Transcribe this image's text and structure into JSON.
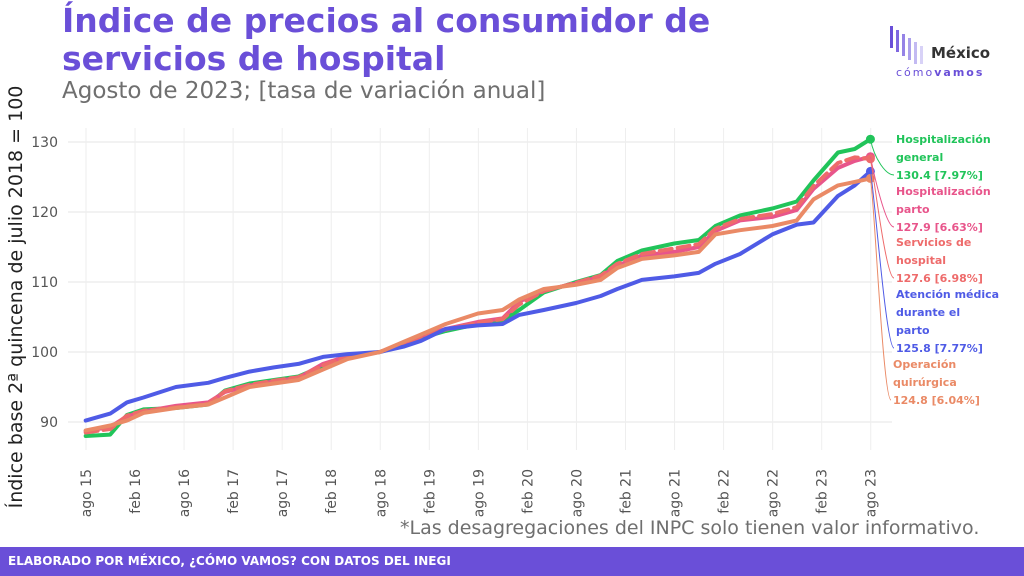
{
  "header": {
    "title": "Índice de precios al consumidor de servicios de hospital",
    "subtitle": "Agosto de 2023; [tasa de variación anual]"
  },
  "logo": {
    "name": "México",
    "sub_a": "cómo",
    "sub_b": "vamos"
  },
  "note": "*Las desagregaciones del INPC solo tienen valor informativo.",
  "footer": "ELABORADO POR MÉXICO, ¿CÓMO VAMOS? CON DATOS DEL INEGI",
  "chart_data": {
    "type": "line",
    "ylabel": "Índice base 2ª quincena de julio 2018 = 100",
    "ylim": [
      86,
      132
    ],
    "yticks": [
      90,
      100,
      110,
      120,
      130
    ],
    "xticks": [
      "ago 15",
      "feb 16",
      "ago 16",
      "feb 17",
      "ago 17",
      "feb 18",
      "ago 18",
      "feb 19",
      "ago 19",
      "feb 20",
      "ago 20",
      "feb 21",
      "ago 21",
      "feb 22",
      "ago 22",
      "feb 23",
      "ago 23"
    ],
    "grid": true,
    "series": [
      {
        "name": "Hospitalización general",
        "value_label": "130.4 [7.97%]",
        "color": "#21c45a",
        "dashed": false,
        "x": [
          2015.58,
          2015.83,
          2016.0,
          2016.17,
          2016.5,
          2016.83,
          2017.0,
          2017.25,
          2017.5,
          2017.75,
          2018.0,
          2018.25,
          2018.58,
          2018.83,
          2019.0,
          2019.25,
          2019.58,
          2019.83,
          2020.0,
          2020.25,
          2020.58,
          2020.83,
          2021.0,
          2021.25,
          2021.58,
          2021.83,
          2022.0,
          2022.25,
          2022.58,
          2022.83,
          2023.0,
          2023.25,
          2023.42,
          2023.58
        ],
        "values": [
          88.0,
          88.2,
          91.0,
          91.8,
          92.0,
          92.5,
          94.5,
          95.5,
          96.0,
          96.5,
          98.0,
          99.3,
          100.0,
          101.0,
          102.0,
          103.0,
          104.0,
          104.5,
          106.0,
          108.5,
          110.0,
          111.0,
          113.0,
          114.5,
          115.5,
          116.0,
          118.0,
          119.5,
          120.5,
          121.5,
          124.5,
          128.5,
          129.0,
          130.4
        ]
      },
      {
        "name": "Hospitalización parto",
        "value_label": "127.9 [6.63%]",
        "color": "#e8558b",
        "dashed": false,
        "x": [
          2015.58,
          2015.83,
          2016.0,
          2016.17,
          2016.5,
          2016.83,
          2017.0,
          2017.25,
          2017.5,
          2017.75,
          2018.0,
          2018.25,
          2018.58,
          2018.83,
          2019.0,
          2019.25,
          2019.58,
          2019.83,
          2020.0,
          2020.25,
          2020.58,
          2020.83,
          2021.0,
          2021.25,
          2021.58,
          2021.83,
          2022.0,
          2022.25,
          2022.58,
          2022.83,
          2023.0,
          2023.25,
          2023.42,
          2023.58
        ],
        "values": [
          88.7,
          89.3,
          90.8,
          91.5,
          92.3,
          92.8,
          94.3,
          95.2,
          95.8,
          96.3,
          98.3,
          99.4,
          100.0,
          101.3,
          102.3,
          103.3,
          104.3,
          104.8,
          107.2,
          108.8,
          109.8,
          110.8,
          112.3,
          113.8,
          114.3,
          115.0,
          117.3,
          118.8,
          119.3,
          120.3,
          123.3,
          126.3,
          127.3,
          127.9
        ]
      },
      {
        "name": "Servicios de hospital",
        "value_label": "127.6 [6.98%]",
        "color": "#ee6b6b",
        "dashed": true,
        "x": [
          2015.58,
          2015.83,
          2016.0,
          2016.17,
          2016.5,
          2016.83,
          2017.0,
          2017.25,
          2017.5,
          2017.75,
          2018.0,
          2018.25,
          2018.58,
          2018.83,
          2019.0,
          2019.25,
          2019.58,
          2019.83,
          2020.0,
          2020.25,
          2020.58,
          2020.83,
          2021.0,
          2021.25,
          2021.58,
          2021.83,
          2022.0,
          2022.25,
          2022.58,
          2022.83,
          2023.0,
          2023.25,
          2023.42,
          2023.58
        ],
        "values": [
          88.5,
          89.0,
          90.9,
          91.6,
          92.1,
          92.6,
          94.4,
          95.3,
          95.9,
          96.4,
          98.1,
          99.3,
          100.0,
          101.2,
          102.2,
          103.2,
          104.2,
          104.7,
          106.8,
          108.7,
          109.9,
          110.9,
          112.6,
          114.0,
          114.8,
          115.4,
          117.6,
          119.0,
          119.7,
          120.7,
          123.7,
          127.0,
          127.8,
          127.6
        ]
      },
      {
        "name": "Atención médica durante el parto",
        "value_label": "125.8 [7.77%]",
        "color": "#4f5be6",
        "dashed": false,
        "x": [
          2015.58,
          2015.83,
          2016.0,
          2016.17,
          2016.5,
          2016.83,
          2017.0,
          2017.25,
          2017.5,
          2017.75,
          2018.0,
          2018.25,
          2018.58,
          2018.83,
          2019.0,
          2019.25,
          2019.58,
          2019.83,
          2020.0,
          2020.25,
          2020.58,
          2020.83,
          2021.0,
          2021.25,
          2021.58,
          2021.83,
          2022.0,
          2022.25,
          2022.58,
          2022.83,
          2023.0,
          2023.25,
          2023.42,
          2023.58
        ],
        "values": [
          90.2,
          91.2,
          92.8,
          93.5,
          95.0,
          95.6,
          96.3,
          97.2,
          97.8,
          98.3,
          99.3,
          99.7,
          100.0,
          100.8,
          101.6,
          103.3,
          103.8,
          104.0,
          105.3,
          106.0,
          107.0,
          108.0,
          109.0,
          110.3,
          110.8,
          111.3,
          112.6,
          114.0,
          116.8,
          118.2,
          118.5,
          122.3,
          123.8,
          125.8
        ]
      },
      {
        "name": "Operación quirúrgica",
        "value_label": "124.8 [6.04%]",
        "color": "#ea8a66",
        "dashed": false,
        "x": [
          2015.58,
          2015.83,
          2016.0,
          2016.17,
          2016.5,
          2016.83,
          2017.0,
          2017.25,
          2017.5,
          2017.75,
          2018.0,
          2018.25,
          2018.58,
          2018.83,
          2019.0,
          2019.25,
          2019.58,
          2019.83,
          2020.0,
          2020.25,
          2020.58,
          2020.83,
          2021.0,
          2021.25,
          2021.58,
          2021.83,
          2022.0,
          2022.25,
          2022.58,
          2022.83,
          2023.0,
          2023.25,
          2023.42,
          2023.58
        ],
        "values": [
          88.8,
          89.5,
          90.2,
          91.3,
          92.0,
          92.5,
          93.5,
          95.0,
          95.5,
          96.0,
          97.5,
          99.0,
          100.0,
          101.5,
          102.5,
          104.0,
          105.5,
          106.0,
          107.5,
          109.0,
          109.6,
          110.3,
          112.0,
          113.3,
          113.8,
          114.3,
          116.8,
          117.4,
          118.0,
          118.8,
          121.8,
          123.8,
          124.3,
          124.8
        ]
      }
    ]
  }
}
